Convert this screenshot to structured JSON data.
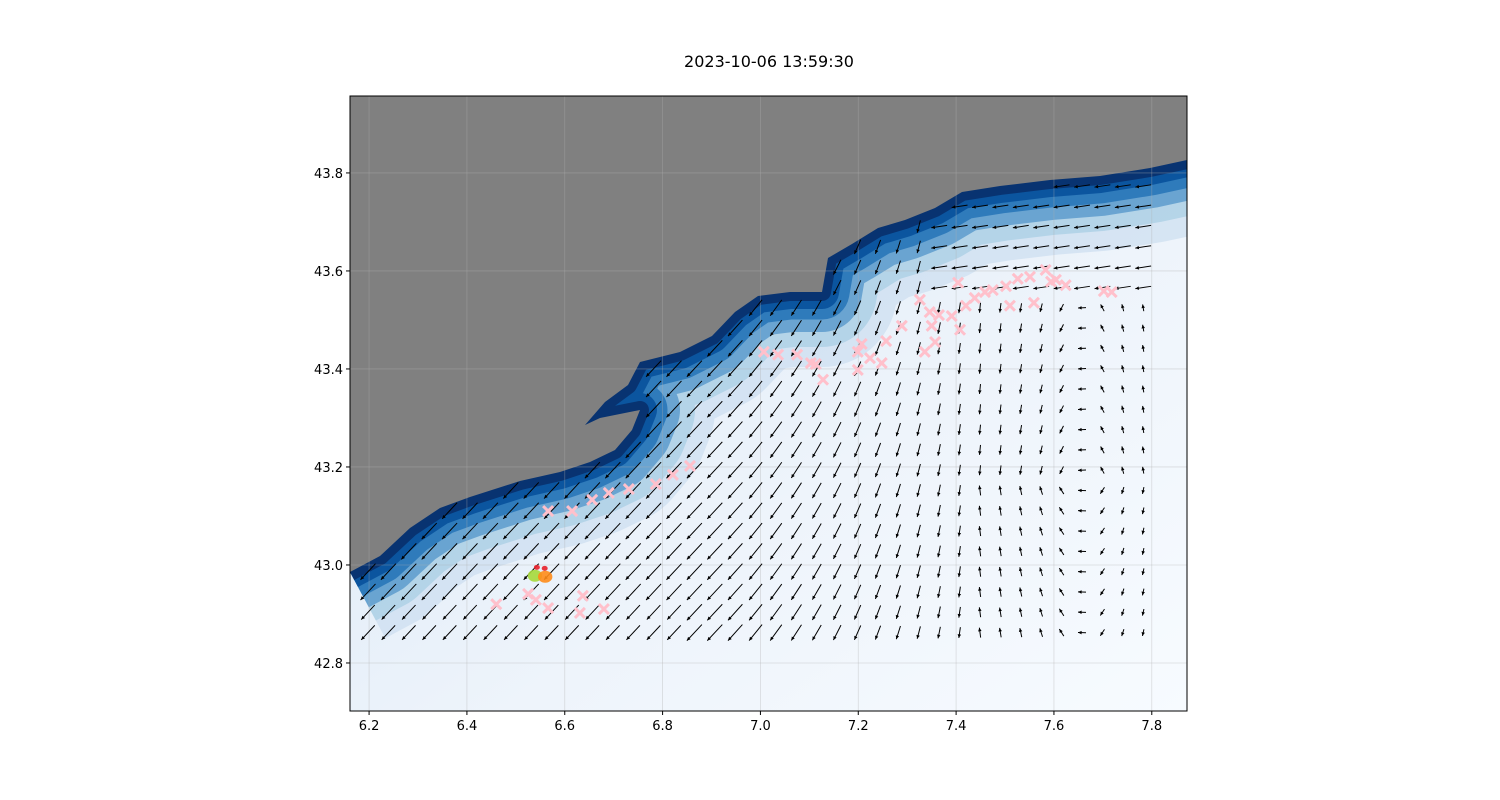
{
  "title": "2023-10-06 13:59:30",
  "chart_data": {
    "type": "map-quiver-scatter",
    "xlim": [
      6.161,
      7.872
    ],
    "ylim": [
      42.702,
      43.957
    ],
    "xticks": [
      "6.2",
      "6.4",
      "6.6",
      "6.8",
      "7.0",
      "7.2",
      "7.4",
      "7.6",
      "7.8"
    ],
    "yticks": [
      "42.8",
      "43.0",
      "43.2",
      "43.4",
      "43.6",
      "43.8"
    ],
    "grid": true,
    "colors": {
      "land": "#808080",
      "coast_shallow": "#08306b",
      "offshore": "#f4f8fd",
      "arrows": "#000000",
      "markers": "#ffc0cb",
      "contour": "#1a237e"
    },
    "markers": [
      [
        6.566,
        43.11
      ],
      [
        6.615,
        43.11
      ],
      [
        6.656,
        43.133
      ],
      [
        6.69,
        43.147
      ],
      [
        6.731,
        43.155
      ],
      [
        6.786,
        43.165
      ],
      [
        6.821,
        43.184
      ],
      [
        6.856,
        43.202
      ],
      [
        7.007,
        43.435
      ],
      [
        7.036,
        43.429
      ],
      [
        7.075,
        43.429
      ],
      [
        7.103,
        43.412
      ],
      [
        7.113,
        43.41
      ],
      [
        7.128,
        43.378
      ],
      [
        7.199,
        43.435
      ],
      [
        7.207,
        43.451
      ],
      [
        7.199,
        43.398
      ],
      [
        7.224,
        43.422
      ],
      [
        7.248,
        43.412
      ],
      [
        7.257,
        43.457
      ],
      [
        7.289,
        43.488
      ],
      [
        7.326,
        43.541
      ],
      [
        7.346,
        43.516
      ],
      [
        7.35,
        43.488
      ],
      [
        7.357,
        43.455
      ],
      [
        7.336,
        43.435
      ],
      [
        7.365,
        43.51
      ],
      [
        7.391,
        43.508
      ],
      [
        7.408,
        43.48
      ],
      [
        7.42,
        43.529
      ],
      [
        7.438,
        43.545
      ],
      [
        7.459,
        43.557
      ],
      [
        7.475,
        43.561
      ],
      [
        7.502,
        43.569
      ],
      [
        7.526,
        43.584
      ],
      [
        7.551,
        43.588
      ],
      [
        7.583,
        43.602
      ],
      [
        7.594,
        43.578
      ],
      [
        7.624,
        43.571
      ],
      [
        7.702,
        43.559
      ],
      [
        7.718,
        43.557
      ],
      [
        7.404,
        43.576
      ],
      [
        7.51,
        43.529
      ],
      [
        7.559,
        43.535
      ],
      [
        7.604,
        43.582
      ],
      [
        6.46,
        42.92
      ],
      [
        6.525,
        42.941
      ],
      [
        6.566,
        42.912
      ],
      [
        6.631,
        42.902
      ],
      [
        6.637,
        42.937
      ],
      [
        6.68,
        42.91
      ],
      [
        6.541,
        42.929
      ]
    ],
    "highlight_points": [
      {
        "lon": 6.539,
        "lat": 42.978,
        "color": "#a6d93a"
      },
      {
        "lon": 6.56,
        "lat": 42.976,
        "color": "#ff8c1a"
      },
      {
        "lon": 6.543,
        "lat": 42.995,
        "color": "#e8202a"
      },
      {
        "lon": 6.559,
        "lat": 42.993,
        "color": "#e8202a"
      }
    ]
  }
}
